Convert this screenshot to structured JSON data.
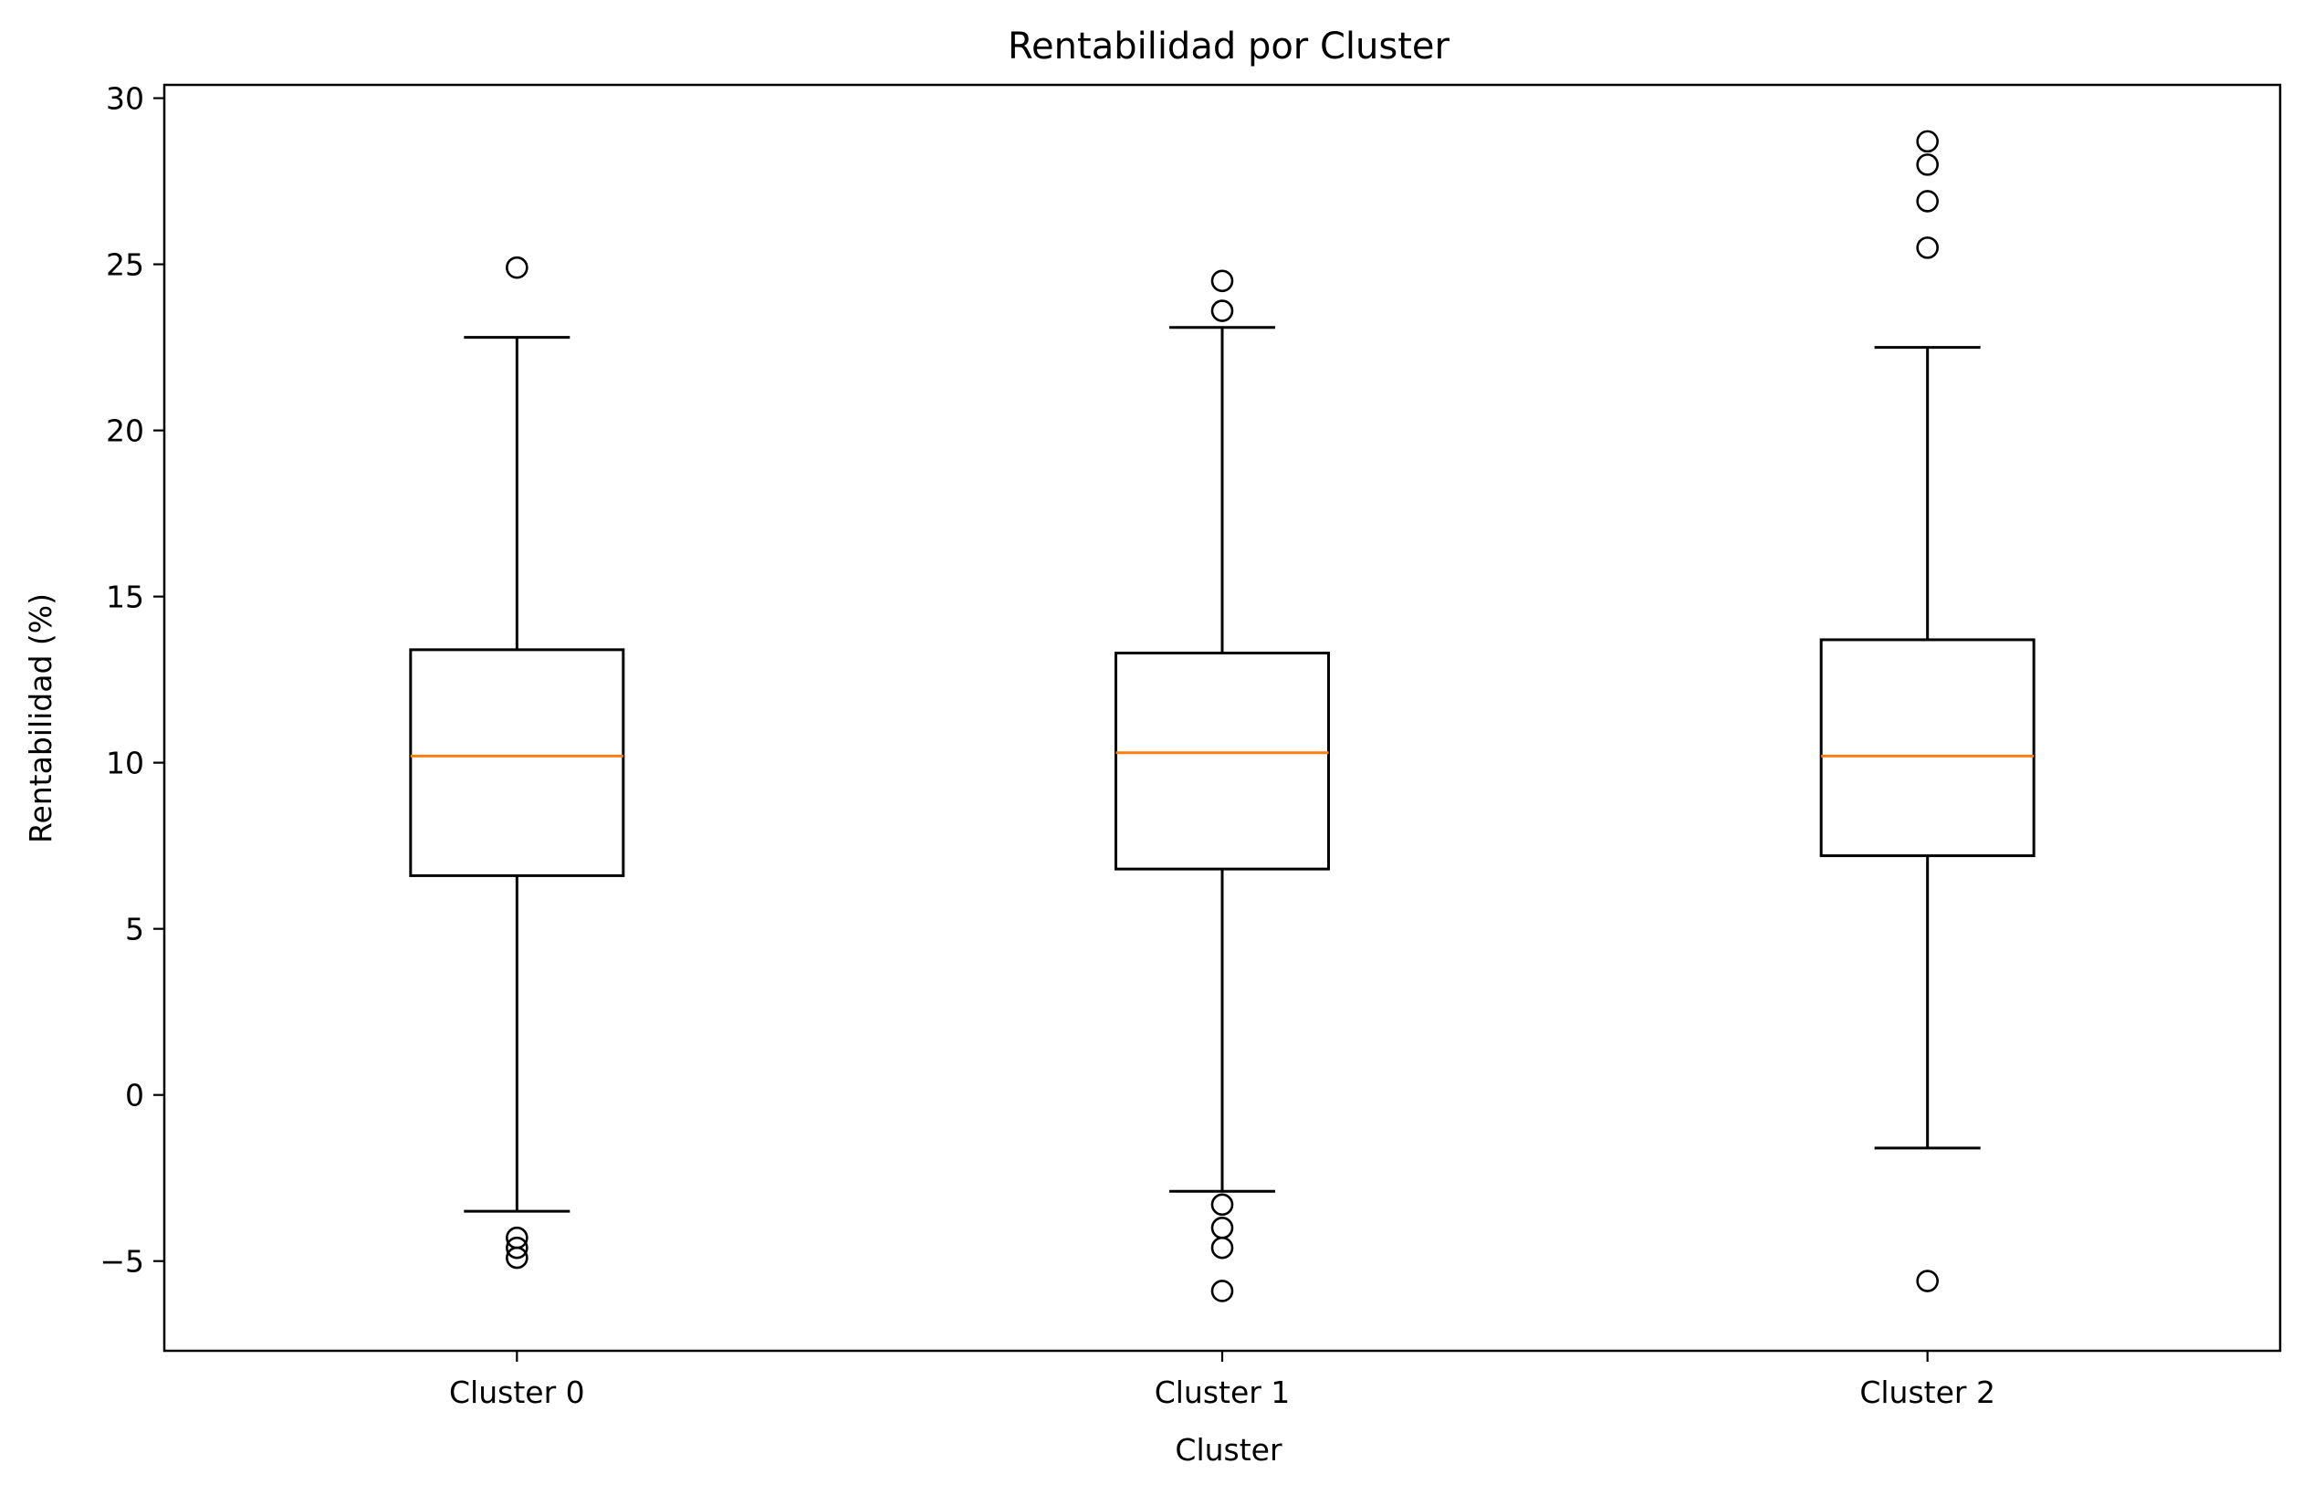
{
  "chart_data": {
    "type": "box",
    "title": "Rentabilidad por Cluster",
    "xlabel": "Cluster",
    "ylabel": "Rentabilidad (%)",
    "ylim": [
      -7.7,
      30.4
    ],
    "yticks": [
      -5,
      0,
      5,
      10,
      15,
      20,
      25,
      30
    ],
    "ytick_labels": [
      "−5",
      "0",
      "5",
      "10",
      "15",
      "20",
      "25",
      "30"
    ],
    "categories": [
      "Cluster 0",
      "Cluster 1",
      "Cluster 2"
    ],
    "boxes": [
      {
        "name": "Cluster 0",
        "whisker_low": -3.5,
        "q1": 6.6,
        "median": 10.2,
        "q3": 13.4,
        "whisker_high": 22.8,
        "outliers": [
          24.9,
          -4.3,
          -4.6,
          -4.9
        ]
      },
      {
        "name": "Cluster 1",
        "whisker_low": -2.9,
        "q1": 6.8,
        "median": 10.3,
        "q3": 13.3,
        "whisker_high": 23.1,
        "outliers": [
          24.5,
          23.6,
          -3.3,
          -4.0,
          -4.6,
          -5.9
        ]
      },
      {
        "name": "Cluster 2",
        "whisker_low": -1.6,
        "q1": 7.2,
        "median": 10.2,
        "q3": 13.7,
        "whisker_high": 22.5,
        "outliers": [
          28.7,
          28.0,
          26.9,
          25.5,
          -5.6
        ]
      }
    ],
    "grid": false,
    "colors": {
      "box": "#000000",
      "median": "#ff7f0e",
      "outlier": "#000000"
    }
  }
}
